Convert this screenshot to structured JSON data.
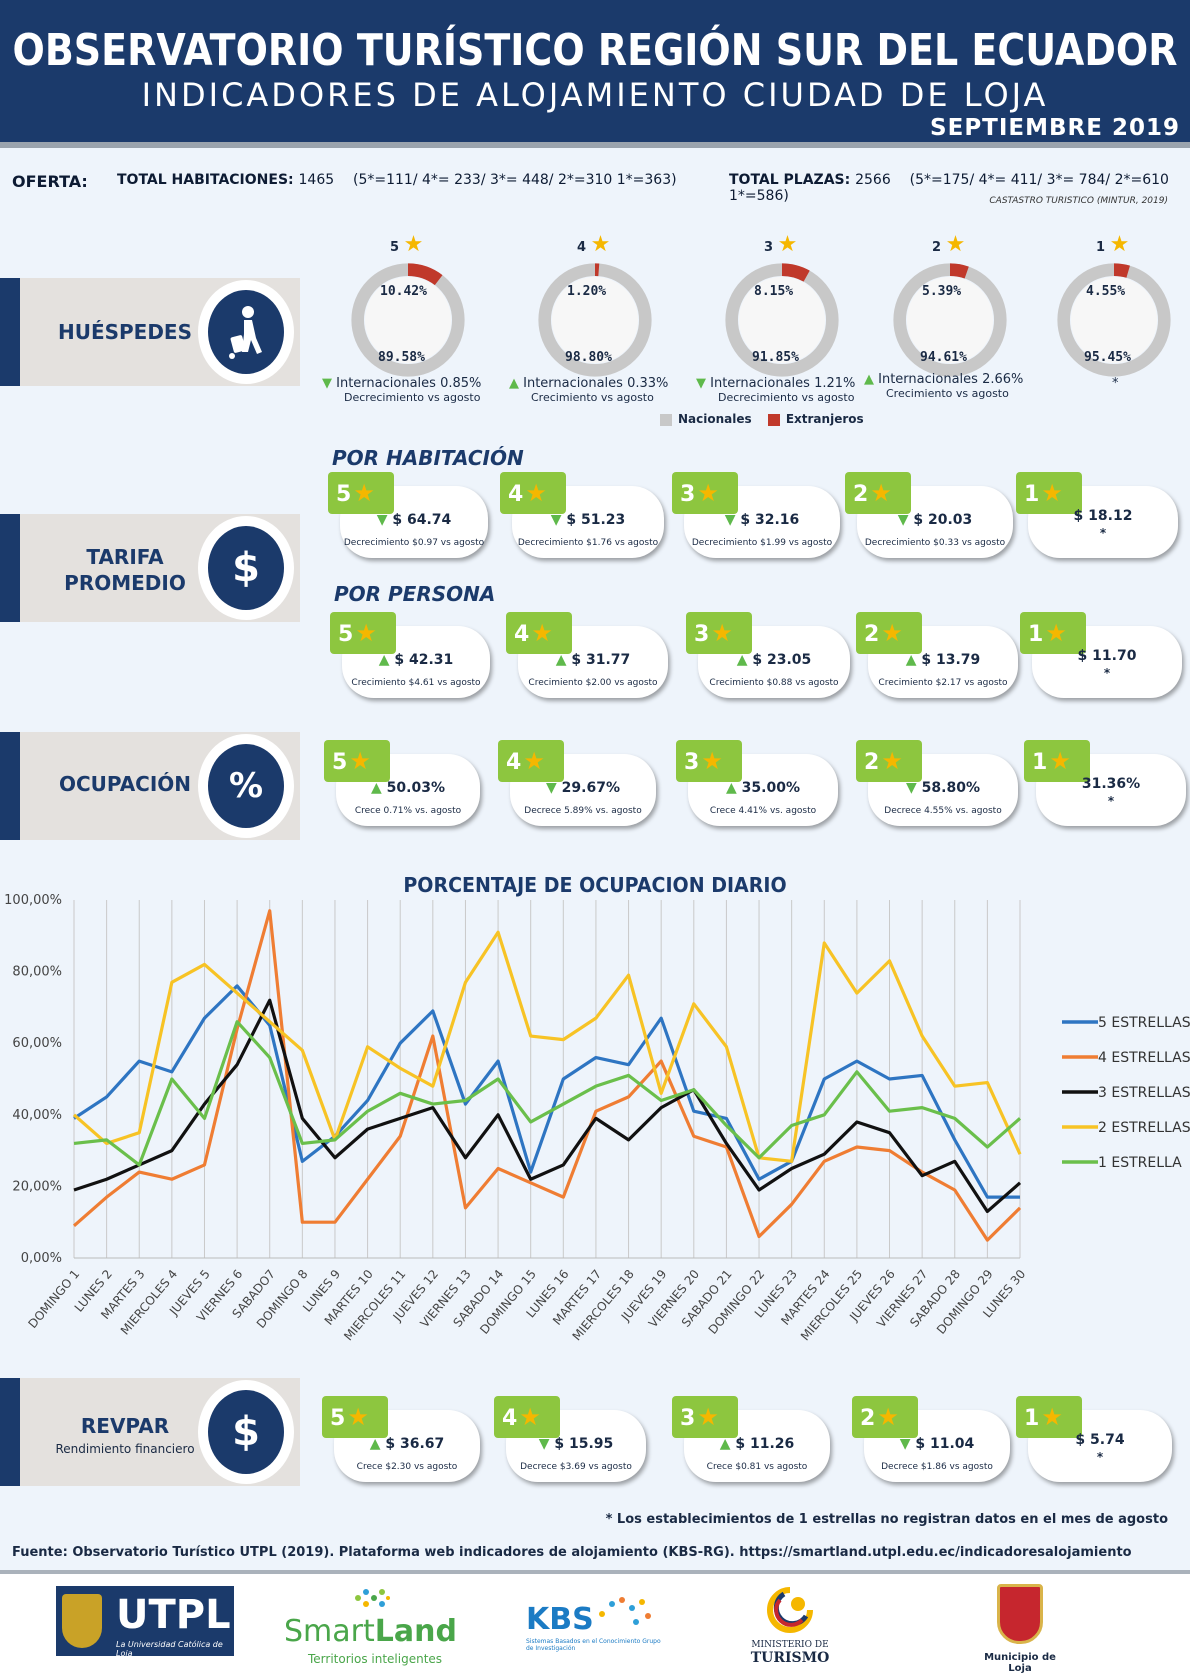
{
  "header": {
    "title": "OBSERVATORIO TURÍSTICO REGIÓN SUR DEL ECUADOR",
    "subtitle": "INDICADORES  DE  ALOJAMIENTO CIUDAD DE LOJA",
    "period": "SEPTIEMBRE 2019"
  },
  "oferta": {
    "label": "OFERTA:",
    "hab_label": "TOTAL HABITACIONES:",
    "hab_value": "1465",
    "hab_detail": "(5*=111/ 4*= 233/ 3*= 448/ 2*=310 1*=363)",
    "plazas_label": "TOTAL PLAZAS:",
    "plazas_value": "2566",
    "plazas_detail": "(5*=175/ 4*= 411/ 3*= 784/ 2*=610 1*=586)",
    "source": "CASTASTRO TURISTICO (MINTUR, 2019)"
  },
  "sections": {
    "huespedes": "HUÉSPEDES",
    "tarifa_l1": "TARIFA",
    "tarifa_l2": "PROMEDIO",
    "ocupacion": "OCUPACIÓN",
    "revpar": "REVPAR",
    "revpar_sub": "Rendimiento financiero",
    "dollar": "$",
    "percent": "%"
  },
  "colors": {
    "navy": "#1b3a6b",
    "green_badge": "#8dc63f",
    "star": "#f5b700",
    "nacionales": "#c8c8c8",
    "extranjeros": "#c0392b"
  },
  "huespedes": {
    "legend_nacionales": "Nacionales",
    "legend_extranjeros": "Extranjeros",
    "items": [
      {
        "stars": "5",
        "extranjeros": "10.42%",
        "nacionales": "89.58%",
        "ext_value": 10.42,
        "note": "Internacionales 0.85%",
        "note2": "Decrecimiento vs agosto",
        "dir": "down"
      },
      {
        "stars": "4",
        "extranjeros": "1.20%",
        "nacionales": "98.80%",
        "ext_value": 1.2,
        "note": "Internacionales 0.33%",
        "note2": "Crecimiento vs agosto",
        "dir": "up"
      },
      {
        "stars": "3",
        "extranjeros": "8.15%",
        "nacionales": "91.85%",
        "ext_value": 8.15,
        "note": "Internacionales 1.21%",
        "note2": "Decrecimiento vs agosto",
        "dir": "down"
      },
      {
        "stars": "2",
        "extranjeros": "5.39%",
        "nacionales": "94.61%",
        "ext_value": 5.39,
        "note": "Internacionales 2.66%",
        "note2": "Crecimiento vs agosto",
        "dir": "up"
      },
      {
        "stars": "1",
        "extranjeros": "4.55%",
        "nacionales": "95.45%",
        "ext_value": 4.55,
        "note": "*",
        "note2": "",
        "dir": "none"
      }
    ]
  },
  "tarifa": {
    "por_habitacion": "POR HABITACIÓN",
    "por_persona": "POR PERSONA",
    "habitacion": [
      {
        "stars": "5",
        "value": "$ 64.74",
        "note": "Decrecimiento $0.97 vs agosto",
        "dir": "down"
      },
      {
        "stars": "4",
        "value": "$ 51.23",
        "note": "Decrecimiento $1.76 vs agosto",
        "dir": "down"
      },
      {
        "stars": "3",
        "value": "$ 32.16",
        "note": "Decrecimiento $1.99 vs agosto",
        "dir": "down"
      },
      {
        "stars": "2",
        "value": "$ 20.03",
        "note": "Decrecimiento $0.33 vs agosto",
        "dir": "down"
      },
      {
        "stars": "1",
        "value": "$ 18.12",
        "note": "*",
        "dir": "none"
      }
    ],
    "persona": [
      {
        "stars": "5",
        "value": "$ 42.31",
        "note": "Crecimiento $4.61 vs agosto",
        "dir": "up"
      },
      {
        "stars": "4",
        "value": "$ 31.77",
        "note": "Crecimiento $2.00 vs agosto",
        "dir": "up"
      },
      {
        "stars": "3",
        "value": "$ 23.05",
        "note": "Crecimiento $0.88 vs agosto",
        "dir": "up"
      },
      {
        "stars": "2",
        "value": "$ 13.79",
        "note": "Crecimiento $2.17 vs agosto",
        "dir": "up"
      },
      {
        "stars": "1",
        "value": "$ 11.70",
        "note": "*",
        "dir": "none"
      }
    ]
  },
  "ocupacion": [
    {
      "stars": "5",
      "value": "50.03%",
      "note": "Crece 0.71% vs. agosto",
      "dir": "up"
    },
    {
      "stars": "4",
      "value": "29.67%",
      "note": "Decrece 5.89% vs. agosto",
      "dir": "down"
    },
    {
      "stars": "3",
      "value": "35.00%",
      "note": "Crece 4.41% vs. agosto",
      "dir": "up"
    },
    {
      "stars": "2",
      "value": "58.80%",
      "note": "Decrece 4.55% vs. agosto",
      "dir": "down"
    },
    {
      "stars": "1",
      "value": "31.36%",
      "note": "*",
      "dir": "none"
    }
  ],
  "revpar": [
    {
      "stars": "5",
      "value": "$ 36.67",
      "note": "Crece $2.30 vs agosto",
      "dir": "up"
    },
    {
      "stars": "4",
      "value": "$ 15.95",
      "note": "Decrece $3.69 vs agosto",
      "dir": "down"
    },
    {
      "stars": "3",
      "value": "$ 11.26",
      "note": "Crece $0.81 vs agosto",
      "dir": "up"
    },
    {
      "stars": "2",
      "value": "$ 11.04",
      "note": "Decrece $1.86 vs agosto",
      "dir": "down"
    },
    {
      "stars": "1",
      "value": "$ 5.74",
      "note": "*",
      "dir": "none"
    }
  ],
  "chart_data": {
    "type": "line",
    "title": "PORCENTAJE DE OCUPACION DIARIO",
    "ylim": [
      0,
      100
    ],
    "yticks": [
      "0,00%",
      "20,00%",
      "40,00%",
      "60,00%",
      "80,00%",
      "100,00%"
    ],
    "grid": "vertical",
    "legend": "right",
    "categories": [
      "DOMINGO 1",
      "LUNES 2",
      "MARTES 3",
      "MIERCOLES 4",
      "JUEVES 5",
      "VIERNES 6",
      "SABADO7",
      "DOMINGO 8",
      "LUNES 9",
      "MARTES 10",
      "MIERCOLES 11",
      "JUEVES 12",
      "VIERNES 13",
      "SABADO 14",
      "DOMINGO 15",
      "LUNES 16",
      "MARTES 17",
      "MIERCOLES 18",
      "JUEVES 19",
      "VIERNES 20",
      "SABADO 21",
      "DOMINGO 22",
      "LUNES 23",
      "MARTES 24",
      "MIERCOLES 25",
      "JUEVES 26",
      "VIERNES 27",
      "SABADO 28",
      "DOMINGO 29",
      "LUNES 30"
    ],
    "series": [
      {
        "name": "5 ESTRELLAS",
        "color": "#2e75c2",
        "values": [
          39,
          45,
          55,
          52,
          67,
          76,
          65,
          27,
          34,
          44,
          60,
          69,
          43,
          55,
          24,
          50,
          56,
          54,
          67,
          41,
          39,
          22,
          27,
          50,
          55,
          50,
          51,
          33,
          17,
          17
        ]
      },
      {
        "name": "4 ESTRELLAS",
        "color": "#ef7d33",
        "values": [
          9,
          17,
          24,
          22,
          26,
          64,
          97,
          10,
          10,
          22,
          34,
          62,
          14,
          25,
          21,
          17,
          41,
          45,
          55,
          34,
          31,
          6,
          15,
          27,
          31,
          30,
          24,
          19,
          5,
          14
        ]
      },
      {
        "name": "3 ESTRELLAS",
        "color": "#111111",
        "values": [
          19,
          22,
          26,
          30,
          43,
          54,
          72,
          39,
          28,
          36,
          39,
          42,
          28,
          40,
          22,
          26,
          39,
          33,
          42,
          47,
          32,
          19,
          25,
          29,
          38,
          35,
          23,
          27,
          13,
          21
        ]
      },
      {
        "name": "2 ESTRELLAS",
        "color": "#f7c325",
        "values": [
          40,
          32,
          35,
          77,
          82,
          74,
          66,
          58,
          33,
          59,
          53,
          48,
          77,
          91,
          62,
          61,
          67,
          79,
          46,
          71,
          59,
          28,
          27,
          88,
          74,
          83,
          62,
          48,
          49,
          29
        ]
      },
      {
        "name": "1 ESTRELLA",
        "color": "#6abf4b",
        "values": [
          32,
          33,
          26,
          50,
          39,
          66,
          56,
          32,
          33,
          41,
          46,
          43,
          44,
          50,
          38,
          43,
          48,
          51,
          44,
          47,
          37,
          28,
          37,
          40,
          52,
          41,
          42,
          39,
          31,
          39
        ]
      }
    ]
  },
  "footnote": "* Los establecimientos de 1 estrellas no registran datos en el mes de agosto",
  "fuente": "Fuente: Observatorio Turístico UTPL (2019). Plataforma web indicadores de alojamiento (KBS-RG). https://smartland.utpl.edu.ec/indicadoresalojamiento",
  "logos": {
    "utpl": "UTPL",
    "utpl_sub": "La Universidad Católica de Loja",
    "smart1": "Smart",
    "smart2": "Land",
    "smart_sub": "Territorios inteligentes",
    "kbs": "KBS",
    "kbs_sub": "Sistemas Basados en el Conocimiento Grupo de Investigación",
    "min1": "MINISTERIO DE",
    "min2": "TURISMO",
    "loja": "Municipio de Loja"
  }
}
